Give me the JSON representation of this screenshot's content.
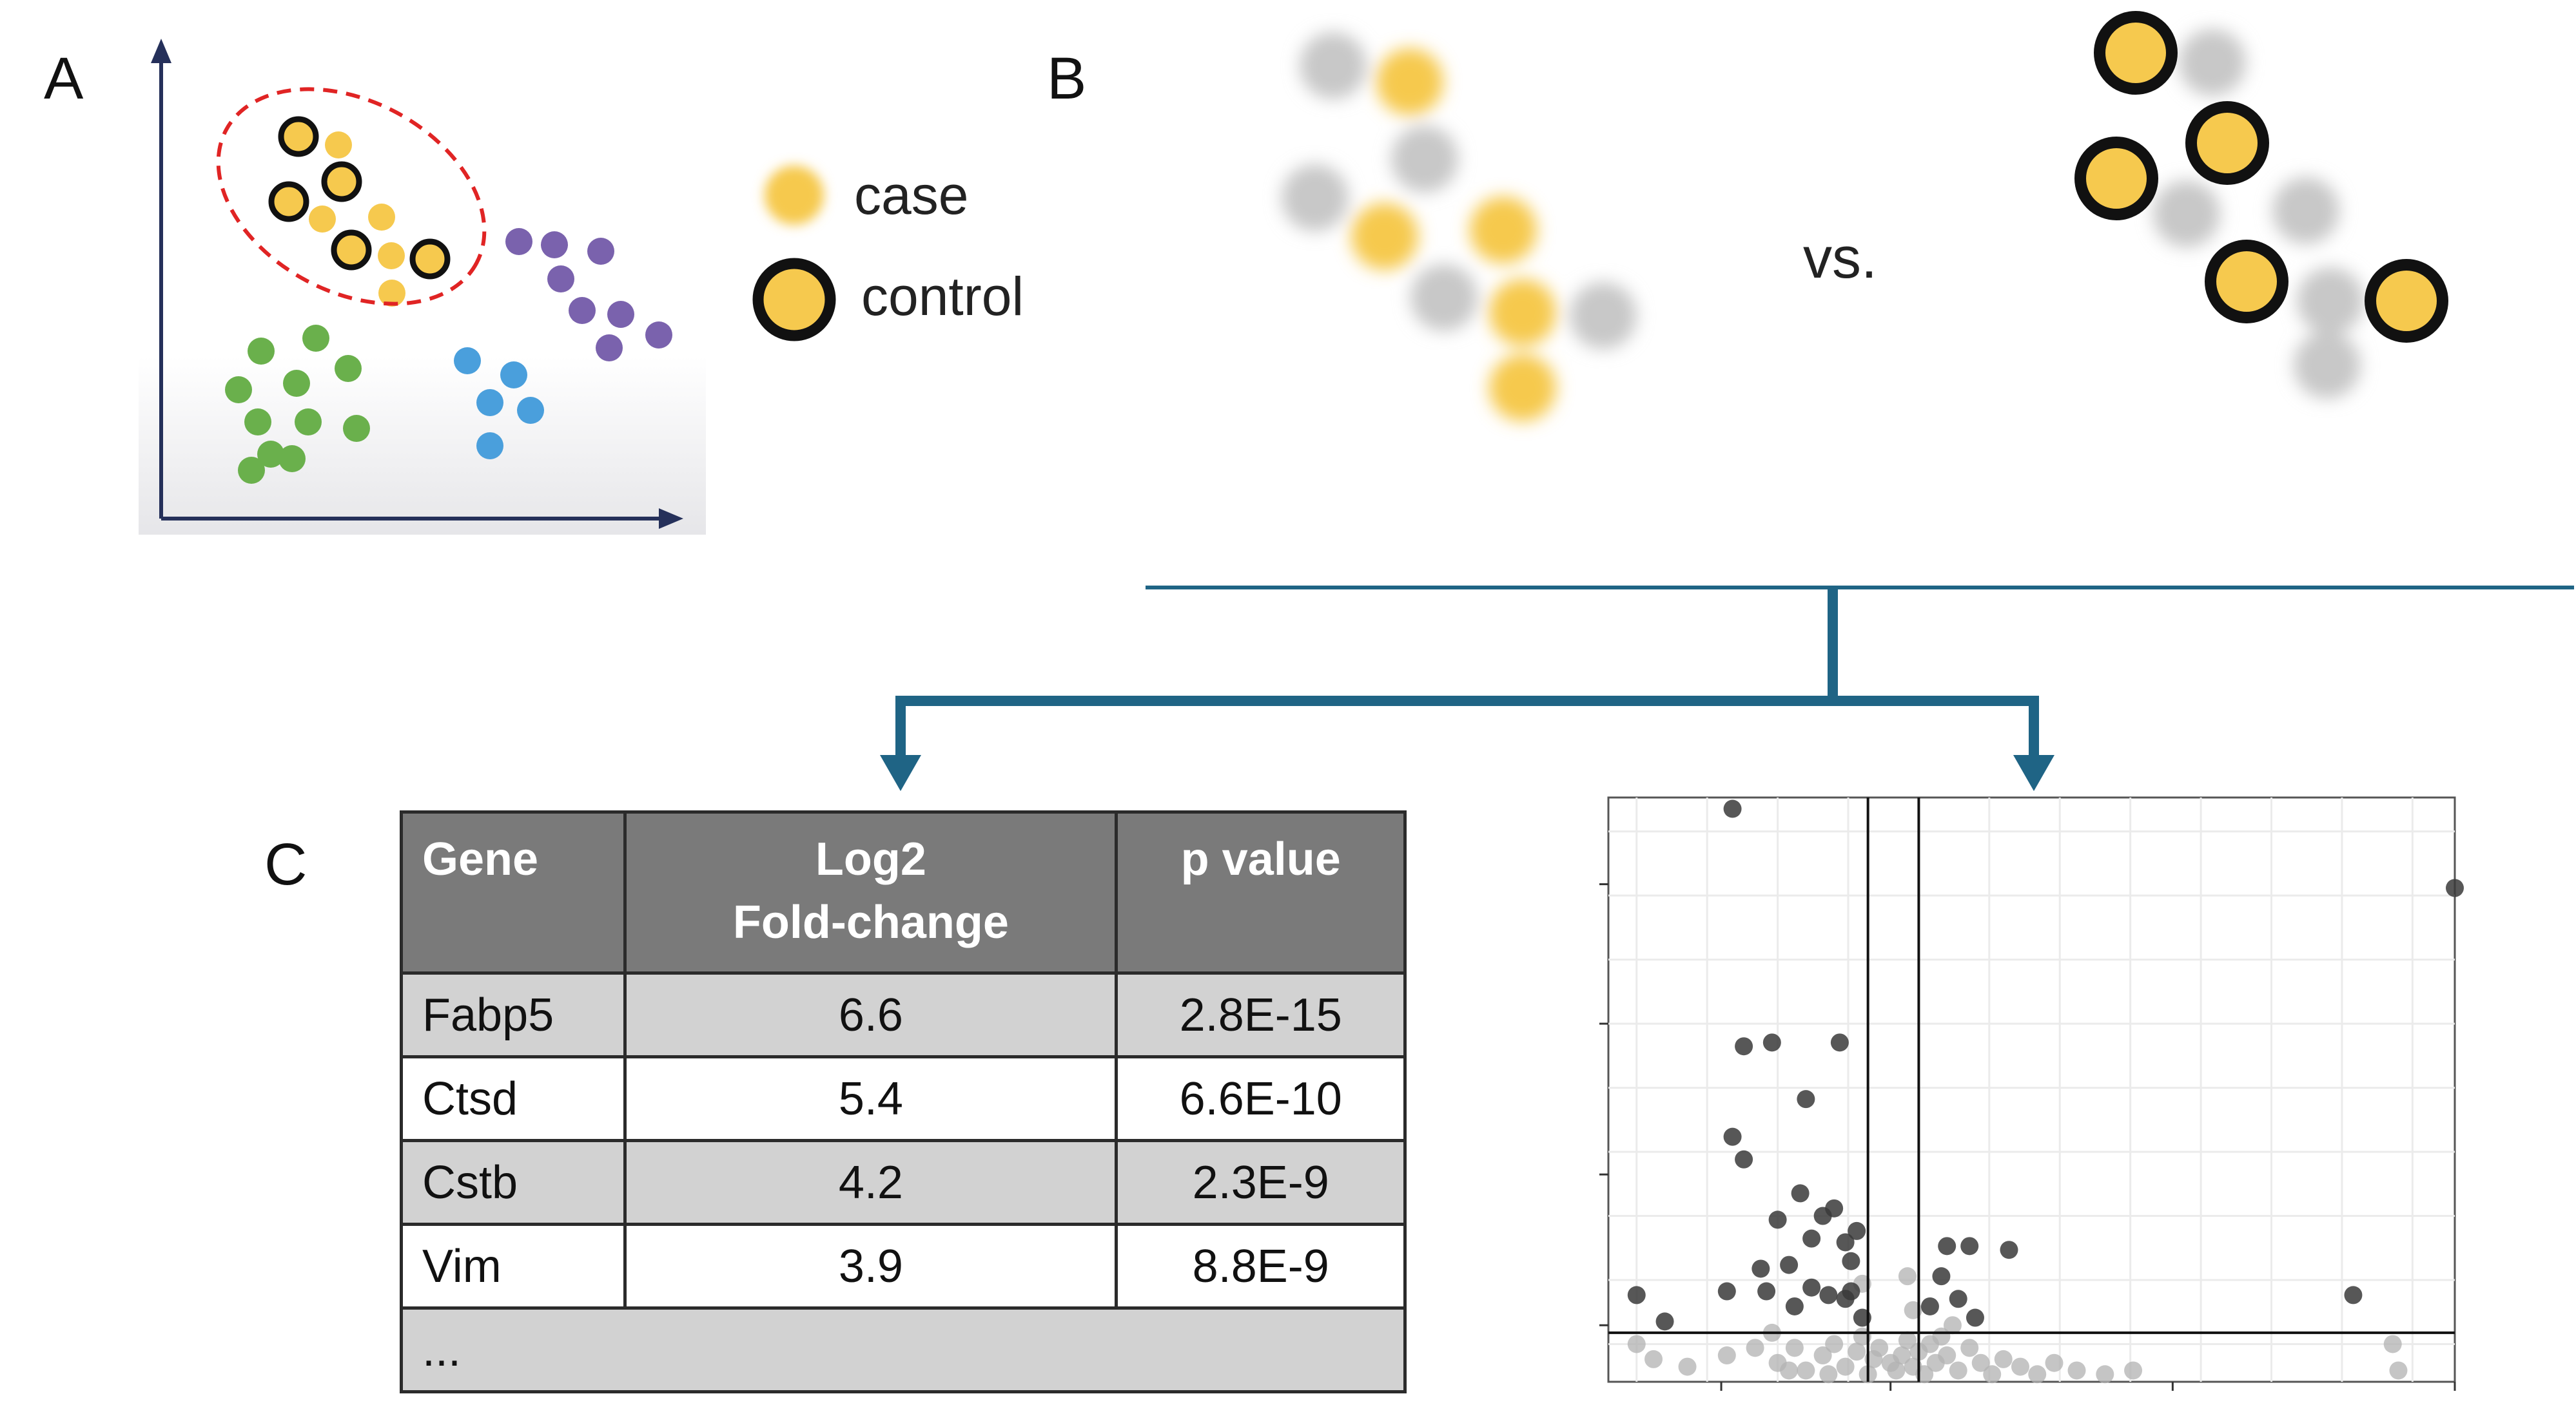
{
  "panel_labels": {
    "a": "A",
    "b": "B",
    "c": "C"
  },
  "legend": {
    "case": "case",
    "control": "control"
  },
  "comparison": {
    "vs": "vs."
  },
  "colors": {
    "case_fill": "#f6c94e",
    "control_border": "#111111",
    "blurred_gray": "#c8c8c8",
    "cluster_green": "#6ab04c",
    "cluster_blue": "#4a9fdc",
    "cluster_purple": "#7a62ad",
    "selection_ellipse": "#e02424",
    "arrow_teal": "#1f6485",
    "axis_navy": "#25305a",
    "table_header_bg": "#7a7a7a",
    "table_row_shade": "#d2d2d2"
  },
  "table": {
    "headers": {
      "gene": "Gene",
      "fold_line1": "Log2",
      "fold_line2": "Fold-change",
      "pvalue": "p value"
    },
    "rows": [
      {
        "gene": "Fabp5",
        "fold": "6.6",
        "p": "2.8E-15"
      },
      {
        "gene": "Ctsd",
        "fold": "5.4",
        "p": "6.6E-10"
      },
      {
        "gene": "Cstb",
        "fold": "4.2",
        "p": "2.3E-9"
      },
      {
        "gene": "Vim",
        "fold": "3.9",
        "p": "8.8E-9"
      }
    ],
    "ellipsis": "..."
  },
  "chart_data": {
    "type": "scatter",
    "title": "",
    "xlabel": "",
    "ylabel": "",
    "xlim": [
      -5,
      10
    ],
    "ylim": [
      0,
      15.5
    ],
    "grid": true,
    "thresholds": {
      "log2fc_low": -0.4,
      "log2fc_high": 0.5,
      "pvalue_line": 1.3
    },
    "series": [
      {
        "role": "significant",
        "points": [
          [
            -2.8,
            15.2
          ],
          [
            10.0,
            13.1
          ],
          [
            -2.6,
            8.9
          ],
          [
            -2.1,
            9.0
          ],
          [
            -0.9,
            9.0
          ],
          [
            -1.5,
            7.5
          ],
          [
            -2.8,
            6.5
          ],
          [
            -2.6,
            5.9
          ],
          [
            -1.6,
            5.0
          ],
          [
            -1.0,
            4.6
          ],
          [
            -2.0,
            4.3
          ],
          [
            -1.2,
            4.4
          ],
          [
            -0.6,
            4.0
          ],
          [
            -0.8,
            3.7
          ],
          [
            -1.4,
            3.8
          ],
          [
            1.0,
            3.6
          ],
          [
            1.4,
            3.6
          ],
          [
            2.1,
            3.5
          ],
          [
            -1.8,
            3.1
          ],
          [
            -0.7,
            3.2
          ],
          [
            -2.3,
            3.0
          ],
          [
            -4.5,
            2.3
          ],
          [
            -2.9,
            2.4
          ],
          [
            -2.2,
            2.4
          ],
          [
            -1.4,
            2.5
          ],
          [
            -1.1,
            2.3
          ],
          [
            -0.8,
            2.2
          ],
          [
            -1.7,
            2.0
          ],
          [
            -0.7,
            2.4
          ],
          [
            0.9,
            2.8
          ],
          [
            1.2,
            2.2
          ],
          [
            0.7,
            2.0
          ],
          [
            -4.0,
            1.6
          ],
          [
            8.2,
            2.3
          ],
          [
            1.5,
            1.7
          ],
          [
            -0.5,
            1.7
          ]
        ]
      },
      {
        "role": "not-significant",
        "points": [
          [
            -4.5,
            1.0
          ],
          [
            -4.2,
            0.6
          ],
          [
            -3.6,
            0.4
          ],
          [
            -2.1,
            1.3
          ],
          [
            8.9,
            1.0
          ],
          [
            9.0,
            0.3
          ],
          [
            -2.9,
            0.7
          ],
          [
            -2.4,
            0.9
          ],
          [
            -2.0,
            0.5
          ],
          [
            -1.7,
            0.9
          ],
          [
            -1.5,
            0.3
          ],
          [
            -1.2,
            0.7
          ],
          [
            -1.0,
            1.0
          ],
          [
            -0.8,
            0.4
          ],
          [
            -0.6,
            0.8
          ],
          [
            -0.5,
            1.2
          ],
          [
            -0.4,
            0.2
          ],
          [
            -0.3,
            0.6
          ],
          [
            -0.2,
            0.9
          ],
          [
            0.1,
            0.3
          ],
          [
            0.2,
            0.7
          ],
          [
            0.3,
            1.1
          ],
          [
            0.4,
            0.4
          ],
          [
            0.5,
            0.8
          ],
          [
            0.6,
            0.2
          ],
          [
            0.7,
            1.0
          ],
          [
            0.8,
            0.5
          ],
          [
            1.0,
            0.7
          ],
          [
            1.2,
            0.3
          ],
          [
            1.4,
            0.9
          ],
          [
            1.6,
            0.5
          ],
          [
            1.8,
            0.2
          ],
          [
            2.0,
            0.6
          ],
          [
            2.3,
            0.4
          ],
          [
            2.6,
            0.2
          ],
          [
            2.9,
            0.5
          ],
          [
            3.3,
            0.3
          ],
          [
            3.8,
            0.2
          ],
          [
            4.3,
            0.3
          ],
          [
            -1.8,
            0.3
          ],
          [
            -1.1,
            0.2
          ],
          [
            0.0,
            0.5
          ],
          [
            0.9,
            1.2
          ],
          [
            0.4,
            1.9
          ],
          [
            0.3,
            2.8
          ],
          [
            -0.5,
            2.6
          ],
          [
            1.1,
            1.5
          ]
        ]
      }
    ]
  }
}
